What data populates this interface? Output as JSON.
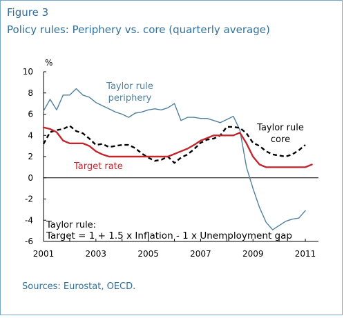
{
  "figure": {
    "label": "Figure 3",
    "title": "Policy rules: Periphery vs. core (quarterly average)",
    "sources": "Sources: Eurostat, OECD."
  },
  "colors": {
    "frame": "#6fa6c8",
    "title_text": "#2f6f99",
    "periphery": "#4f7f9f",
    "core": "#000000",
    "target": "#c0272d"
  },
  "chart_data": {
    "type": "line",
    "ylabel": "%",
    "xlabel": "",
    "ylim": [
      -6,
      10
    ],
    "xlim": [
      2001.0,
      2011.5
    ],
    "y_ticks": [
      -6,
      -4,
      -2,
      0,
      2,
      4,
      6,
      8,
      10
    ],
    "x_ticks": [
      2001,
      2003,
      2005,
      2007,
      2009,
      2011
    ],
    "zero_line": true,
    "grid": false,
    "annotations": {
      "periphery_line1": "Taylor rule",
      "periphery_line2": "periphery",
      "core_line1": "Taylor rule",
      "core_line2": "core",
      "target": "Target rate",
      "formula_line1": "Taylor rule:",
      "formula_line2": "Target = 1 + 1.5 x Inflation - 1 x Unemployment gap"
    },
    "series": [
      {
        "key": "periphery",
        "style": "solid",
        "x": [
          2001.0,
          2001.25,
          2001.5,
          2001.75,
          2002.0,
          2002.25,
          2002.5,
          2002.75,
          2003.0,
          2003.25,
          2003.5,
          2003.75,
          2004.0,
          2004.25,
          2004.5,
          2004.75,
          2005.0,
          2005.25,
          2005.5,
          2005.75,
          2006.0,
          2006.25,
          2006.5,
          2006.75,
          2007.0,
          2007.25,
          2007.5,
          2007.75,
          2008.0,
          2008.25,
          2008.5,
          2008.75,
          2009.0,
          2009.25,
          2009.5,
          2009.75,
          2010.0,
          2010.25,
          2010.5,
          2010.75,
          2011.0
        ],
        "values": [
          6.3,
          7.4,
          6.4,
          7.8,
          7.8,
          8.4,
          7.8,
          7.6,
          7.1,
          6.8,
          6.5,
          6.2,
          6.0,
          5.7,
          6.1,
          6.2,
          6.4,
          6.5,
          6.4,
          6.6,
          7.0,
          5.4,
          5.7,
          5.7,
          5.6,
          5.6,
          5.4,
          5.2,
          5.5,
          5.8,
          4.5,
          1.0,
          -1.0,
          -2.8,
          -4.2,
          -4.9,
          -4.5,
          -4.1,
          -3.9,
          -3.8,
          -3.1
        ]
      },
      {
        "key": "core",
        "style": "dashed",
        "x": [
          2001.0,
          2001.25,
          2001.5,
          2001.75,
          2002.0,
          2002.25,
          2002.5,
          2002.75,
          2003.0,
          2003.25,
          2003.5,
          2003.75,
          2004.0,
          2004.25,
          2004.5,
          2004.75,
          2005.0,
          2005.25,
          2005.5,
          2005.75,
          2006.0,
          2006.25,
          2006.5,
          2006.75,
          2007.0,
          2007.25,
          2007.5,
          2007.75,
          2008.0,
          2008.25,
          2008.5,
          2008.75,
          2009.0,
          2009.25,
          2009.5,
          2009.75,
          2010.0,
          2010.25,
          2010.5,
          2010.75,
          2011.0
        ],
        "values": [
          3.2,
          4.3,
          4.5,
          4.6,
          4.9,
          4.4,
          4.2,
          3.7,
          3.1,
          3.2,
          2.9,
          3.0,
          3.1,
          3.1,
          2.8,
          2.3,
          1.9,
          1.6,
          1.7,
          2.0,
          1.4,
          1.9,
          2.2,
          2.7,
          3.3,
          3.6,
          3.7,
          4.0,
          4.8,
          4.8,
          4.7,
          4.2,
          3.3,
          3.0,
          2.5,
          2.2,
          2.1,
          2.0,
          2.2,
          2.6,
          3.1
        ]
      },
      {
        "key": "target",
        "style": "solid",
        "x": [
          2001.0,
          2001.25,
          2001.5,
          2001.75,
          2002.0,
          2002.25,
          2002.5,
          2002.75,
          2003.0,
          2003.25,
          2003.5,
          2003.75,
          2004.0,
          2004.25,
          2004.5,
          2004.75,
          2005.0,
          2005.25,
          2005.5,
          2005.75,
          2006.0,
          2006.25,
          2006.5,
          2006.75,
          2007.0,
          2007.25,
          2007.5,
          2007.75,
          2008.0,
          2008.25,
          2008.5,
          2008.75,
          2009.0,
          2009.25,
          2009.5,
          2009.75,
          2010.0,
          2010.25,
          2010.5,
          2010.75,
          2011.0,
          2011.25
        ],
        "values": [
          4.75,
          4.6,
          4.3,
          3.5,
          3.25,
          3.25,
          3.25,
          3.0,
          2.5,
          2.2,
          2.0,
          2.0,
          2.0,
          2.0,
          2.0,
          2.0,
          2.0,
          2.0,
          2.0,
          2.0,
          2.25,
          2.5,
          2.75,
          3.1,
          3.5,
          3.75,
          4.0,
          4.0,
          4.0,
          4.0,
          4.25,
          3.25,
          2.0,
          1.25,
          1.0,
          1.0,
          1.0,
          1.0,
          1.0,
          1.0,
          1.0,
          1.25
        ]
      }
    ]
  }
}
